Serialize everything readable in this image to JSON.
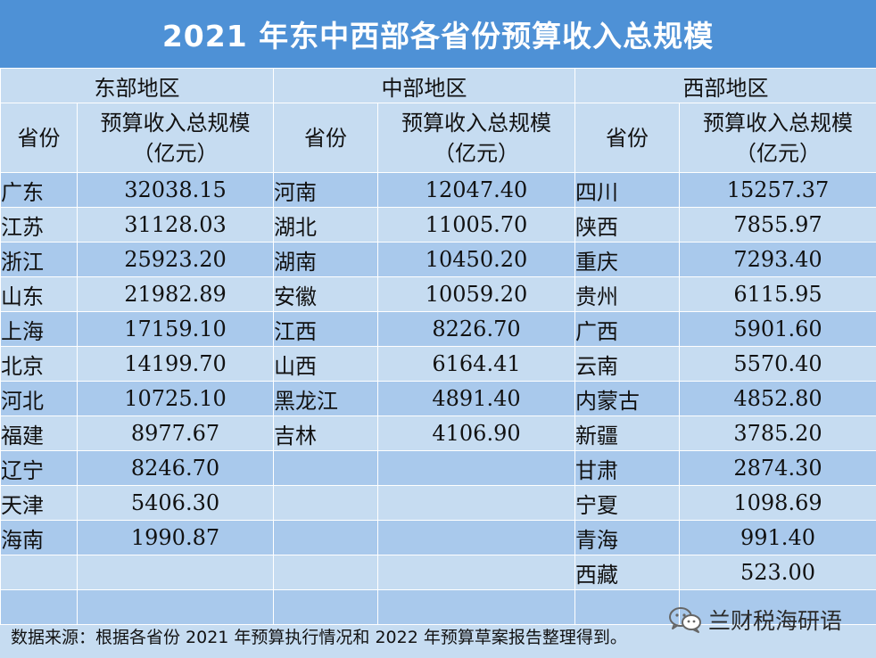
{
  "title": "2021 年东中西部各省份预算收入总规模",
  "regions": [
    {
      "name": "东部地区",
      "col_province": "省份",
      "col_value_line1": "预算收入总规模",
      "col_value_line2": "（亿元）",
      "rows": [
        {
          "province": "广东",
          "value": "32038.15"
        },
        {
          "province": "江苏",
          "value": "31128.03"
        },
        {
          "province": "浙江",
          "value": "25923.20"
        },
        {
          "province": "山东",
          "value": "21982.89"
        },
        {
          "province": "上海",
          "value": "17159.10"
        },
        {
          "province": "北京",
          "value": "14199.70"
        },
        {
          "province": "河北",
          "value": "10725.10"
        },
        {
          "province": "福建",
          "value": "8977.67"
        },
        {
          "province": "辽宁",
          "value": "8246.70"
        },
        {
          "province": "天津",
          "value": "5406.30"
        },
        {
          "province": "海南",
          "value": "1990.87"
        }
      ]
    },
    {
      "name": "中部地区",
      "col_province": "省份",
      "col_value_line1": "预算收入总规模",
      "col_value_line2": "（亿元）",
      "rows": [
        {
          "province": "河南",
          "value": "12047.40"
        },
        {
          "province": "湖北",
          "value": "11005.70"
        },
        {
          "province": "湖南",
          "value": "10450.20"
        },
        {
          "province": "安徽",
          "value": "10059.20"
        },
        {
          "province": "江西",
          "value": "8226.70"
        },
        {
          "province": "山西",
          "value": "6164.41"
        },
        {
          "province": "黑龙江",
          "value": "4891.40"
        },
        {
          "province": "吉林",
          "value": "4106.90"
        }
      ]
    },
    {
      "name": "西部地区",
      "col_province": "省份",
      "col_value_line1": "预算收入总规模",
      "col_value_line2": "（亿元）",
      "rows": [
        {
          "province": "四川",
          "value": "15257.37"
        },
        {
          "province": "陕西",
          "value": "7855.97"
        },
        {
          "province": "重庆",
          "value": "7293.40"
        },
        {
          "province": "贵州",
          "value": "6115.95"
        },
        {
          "province": "广西",
          "value": "5901.60"
        },
        {
          "province": "云南",
          "value": "5570.40"
        },
        {
          "province": "内蒙古",
          "value": "4852.80"
        },
        {
          "province": "新疆",
          "value": "3785.20"
        },
        {
          "province": "甘肃",
          "value": "2874.30"
        },
        {
          "province": "宁夏",
          "value": "1098.69"
        },
        {
          "province": "青海",
          "value": "991.40"
        },
        {
          "province": "西藏",
          "value": "523.00"
        }
      ]
    }
  ],
  "footer_note": "数据来源：根据各省份 2021 年预算执行情况和 2022 年预算草案报告整理得到。",
  "watermark": {
    "icon": "wechat-icon",
    "text": "兰财税海研语"
  },
  "colors": {
    "title_bg": "#4e91d6",
    "title_text": "#ffffff",
    "row_dark": "#a9c9ec",
    "row_light": "#c6dcf1"
  }
}
